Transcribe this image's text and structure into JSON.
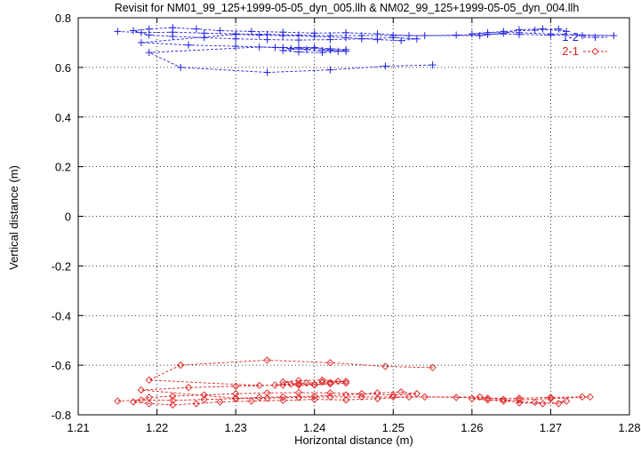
{
  "chart_data": {
    "type": "scatter",
    "title": "Revisit for NM01_99_125+1999-05-05_dyn_005.llh & NM02_99_125+1999-05-05_dyn_004.llh",
    "xlabel": "Horizontal distance (m)",
    "ylabel": "Vertical distance (m)",
    "xlim": [
      1.21,
      1.28
    ],
    "ylim": [
      -0.8,
      0.8
    ],
    "x_ticks": [
      1.21,
      1.22,
      1.23,
      1.24,
      1.25,
      1.26,
      1.27,
      1.28
    ],
    "x_tick_labels": [
      "1.21",
      "1.22",
      "1.23",
      "1.24",
      "1.25",
      "1.26",
      "1.27",
      "1.28"
    ],
    "y_ticks": [
      -0.8,
      -0.6,
      -0.4,
      -0.2,
      0,
      0.2,
      0.4,
      0.6,
      0.8
    ],
    "y_tick_labels": [
      "-0.8",
      "-0.6",
      "-0.4",
      "-0.2",
      "0",
      "0.2",
      "0.4",
      "0.6",
      "0.8"
    ],
    "grid": true,
    "legend_position": "top-right",
    "series": [
      {
        "name": "1-2",
        "color": "#2222dd",
        "marker": "plus",
        "line": "dashed",
        "points": [
          [
            1.215,
            0.745
          ],
          [
            1.218,
            0.74
          ],
          [
            1.222,
            0.742
          ],
          [
            1.226,
            0.738
          ],
          [
            1.23,
            0.735
          ],
          [
            1.234,
            0.733
          ],
          [
            1.238,
            0.73
          ],
          [
            1.242,
            0.728
          ],
          [
            1.246,
            0.728
          ],
          [
            1.25,
            0.728
          ],
          [
            1.254,
            0.728
          ],
          [
            1.258,
            0.73
          ],
          [
            1.262,
            0.733
          ],
          [
            1.266,
            0.733
          ],
          [
            1.27,
            0.73
          ],
          [
            1.274,
            0.728
          ],
          [
            1.278,
            0.728
          ],
          [
            1.27,
            0.735
          ],
          [
            1.266,
            0.74
          ],
          [
            1.262,
            0.74
          ],
          [
            1.26,
            0.735
          ],
          [
            1.264,
            0.745
          ],
          [
            1.268,
            0.75
          ],
          [
            1.271,
            0.755
          ],
          [
            1.272,
            0.745
          ],
          [
            1.269,
            0.755
          ],
          [
            1.266,
            0.752
          ],
          [
            1.264,
            0.738
          ],
          [
            1.261,
            0.728
          ],
          [
            1.252,
            0.728
          ],
          [
            1.248,
            0.735
          ],
          [
            1.244,
            0.74
          ],
          [
            1.24,
            0.738
          ],
          [
            1.236,
            0.742
          ],
          [
            1.232,
            0.745
          ],
          [
            1.228,
            0.748
          ],
          [
            1.225,
            0.755
          ],
          [
            1.222,
            0.76
          ],
          [
            1.219,
            0.755
          ],
          [
            1.217,
            0.748
          ],
          [
            1.219,
            0.73
          ],
          [
            1.222,
            0.725
          ],
          [
            1.226,
            0.72
          ],
          [
            1.23,
            0.715
          ],
          [
            1.234,
            0.712
          ],
          [
            1.238,
            0.71
          ],
          [
            1.242,
            0.712
          ],
          [
            1.246,
            0.715
          ],
          [
            1.25,
            0.72
          ],
          [
            1.253,
            0.715
          ],
          [
            1.251,
            0.708
          ],
          [
            1.248,
            0.712
          ],
          [
            1.244,
            0.72
          ],
          [
            1.24,
            0.725
          ],
          [
            1.236,
            0.728
          ],
          [
            1.233,
            0.73
          ],
          [
            1.23,
            0.733
          ],
          [
            1.218,
            0.7
          ],
          [
            1.224,
            0.69
          ],
          [
            1.23,
            0.685
          ],
          [
            1.236,
            0.68
          ],
          [
            1.238,
            0.68
          ],
          [
            1.24,
            0.68
          ],
          [
            1.242,
            0.675
          ],
          [
            1.244,
            0.672
          ],
          [
            1.243,
            0.665
          ],
          [
            1.241,
            0.66
          ],
          [
            1.238,
            0.662
          ],
          [
            1.236,
            0.668
          ],
          [
            1.238,
            0.675
          ],
          [
            1.24,
            0.678
          ],
          [
            1.242,
            0.67
          ],
          [
            1.244,
            0.665
          ],
          [
            1.241,
            0.668
          ],
          [
            1.239,
            0.672
          ],
          [
            1.237,
            0.676
          ],
          [
            1.235,
            0.68
          ],
          [
            1.233,
            0.682
          ],
          [
            1.219,
            0.66
          ],
          [
            1.223,
            0.6
          ],
          [
            1.234,
            0.58
          ],
          [
            1.242,
            0.59
          ],
          [
            1.249,
            0.605
          ],
          [
            1.255,
            0.61
          ]
        ]
      },
      {
        "name": "2-1",
        "color": "#dd2222",
        "marker": "diamond",
        "line": "dashed",
        "points": [
          [
            1.215,
            -0.745
          ],
          [
            1.218,
            -0.74
          ],
          [
            1.222,
            -0.742
          ],
          [
            1.226,
            -0.738
          ],
          [
            1.23,
            -0.735
          ],
          [
            1.234,
            -0.733
          ],
          [
            1.238,
            -0.73
          ],
          [
            1.242,
            -0.728
          ],
          [
            1.246,
            -0.728
          ],
          [
            1.25,
            -0.728
          ],
          [
            1.254,
            -0.728
          ],
          [
            1.258,
            -0.73
          ],
          [
            1.262,
            -0.733
          ],
          [
            1.266,
            -0.733
          ],
          [
            1.27,
            -0.73
          ],
          [
            1.274,
            -0.728
          ],
          [
            1.275,
            -0.728
          ],
          [
            1.27,
            -0.735
          ],
          [
            1.266,
            -0.74
          ],
          [
            1.262,
            -0.74
          ],
          [
            1.26,
            -0.735
          ],
          [
            1.264,
            -0.745
          ],
          [
            1.268,
            -0.75
          ],
          [
            1.271,
            -0.755
          ],
          [
            1.272,
            -0.745
          ],
          [
            1.269,
            -0.755
          ],
          [
            1.266,
            -0.752
          ],
          [
            1.264,
            -0.738
          ],
          [
            1.261,
            -0.728
          ],
          [
            1.252,
            -0.728
          ],
          [
            1.248,
            -0.735
          ],
          [
            1.244,
            -0.74
          ],
          [
            1.24,
            -0.738
          ],
          [
            1.236,
            -0.742
          ],
          [
            1.232,
            -0.745
          ],
          [
            1.228,
            -0.748
          ],
          [
            1.225,
            -0.755
          ],
          [
            1.222,
            -0.76
          ],
          [
            1.219,
            -0.755
          ],
          [
            1.217,
            -0.748
          ],
          [
            1.219,
            -0.73
          ],
          [
            1.222,
            -0.725
          ],
          [
            1.226,
            -0.72
          ],
          [
            1.23,
            -0.715
          ],
          [
            1.234,
            -0.712
          ],
          [
            1.238,
            -0.71
          ],
          [
            1.242,
            -0.712
          ],
          [
            1.246,
            -0.715
          ],
          [
            1.25,
            -0.72
          ],
          [
            1.253,
            -0.715
          ],
          [
            1.251,
            -0.708
          ],
          [
            1.248,
            -0.712
          ],
          [
            1.244,
            -0.72
          ],
          [
            1.24,
            -0.725
          ],
          [
            1.236,
            -0.728
          ],
          [
            1.233,
            -0.73
          ],
          [
            1.23,
            -0.733
          ],
          [
            1.218,
            -0.7
          ],
          [
            1.224,
            -0.69
          ],
          [
            1.23,
            -0.685
          ],
          [
            1.236,
            -0.68
          ],
          [
            1.238,
            -0.68
          ],
          [
            1.24,
            -0.68
          ],
          [
            1.242,
            -0.675
          ],
          [
            1.244,
            -0.672
          ],
          [
            1.243,
            -0.665
          ],
          [
            1.241,
            -0.66
          ],
          [
            1.238,
            -0.662
          ],
          [
            1.236,
            -0.668
          ],
          [
            1.238,
            -0.675
          ],
          [
            1.24,
            -0.678
          ],
          [
            1.242,
            -0.67
          ],
          [
            1.244,
            -0.665
          ],
          [
            1.241,
            -0.668
          ],
          [
            1.239,
            -0.672
          ],
          [
            1.237,
            -0.676
          ],
          [
            1.235,
            -0.68
          ],
          [
            1.233,
            -0.682
          ],
          [
            1.219,
            -0.66
          ],
          [
            1.223,
            -0.6
          ],
          [
            1.234,
            -0.58
          ],
          [
            1.242,
            -0.59
          ],
          [
            1.249,
            -0.605
          ],
          [
            1.255,
            -0.61
          ]
        ]
      }
    ]
  }
}
